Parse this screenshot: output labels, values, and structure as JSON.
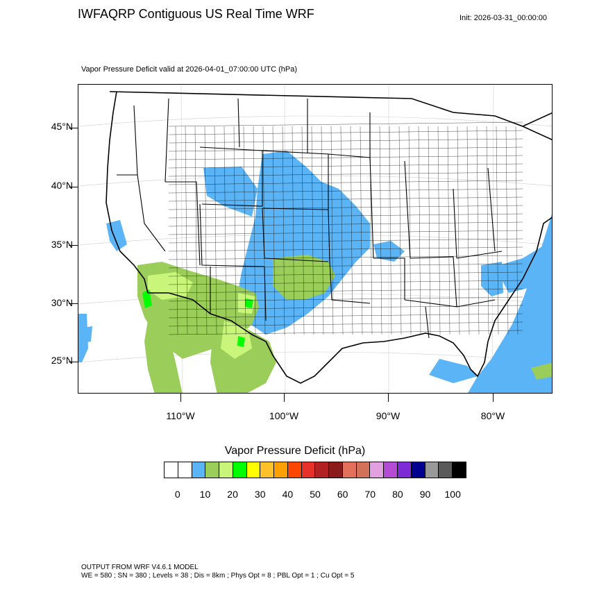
{
  "header": {
    "title": "IWFAQRP Contiguous US Real Time WRF",
    "init": "Init: 2026-03-31_00:00:00"
  },
  "plot": {
    "subtitle": "Vapor Pressure Deficit valid at 2026-04-01_07:00:00 UTC   (hPa)",
    "lat_labels": [
      "45°N",
      "40°N",
      "35°N",
      "30°N",
      "25°N"
    ],
    "lon_labels": [
      "110°W",
      "100°W",
      "90°W",
      "80°W"
    ]
  },
  "colorbar": {
    "title": "Vapor Pressure Deficit  (hPa)",
    "labels": [
      "0",
      "10",
      "20",
      "30",
      "40",
      "50",
      "60",
      "70",
      "80",
      "90",
      "100"
    ],
    "colors": [
      "#ffffff",
      "#ffffff",
      "#5ab4f5",
      "#9acd5a",
      "#c8f57a",
      "#00ff00",
      "#ffff00",
      "#ffc12a",
      "#ff9f00",
      "#ff4500",
      "#e8302a",
      "#b22222",
      "#8b1a1a",
      "#e46f5a",
      "#d2705a",
      "#e3a0e0",
      "#b44bd4",
      "#7d2bd4",
      "#000090",
      "#999999",
      "#5a5a5a",
      "#000000"
    ],
    "data_colors": {
      "low": "#5ab4f5",
      "mid": "#9acd5a",
      "midhigh": "#c8f57a",
      "high": "#00ff00"
    }
  },
  "footer": {
    "line1": "OUTPUT FROM WRF V4.6.1 MODEL",
    "line2": "WE = 580 ; SN = 380 ; Levels = 38 ; Dis = 8km ; Phys Opt = 8 ; PBL Opt = 1 ; Cu Opt = 5"
  }
}
